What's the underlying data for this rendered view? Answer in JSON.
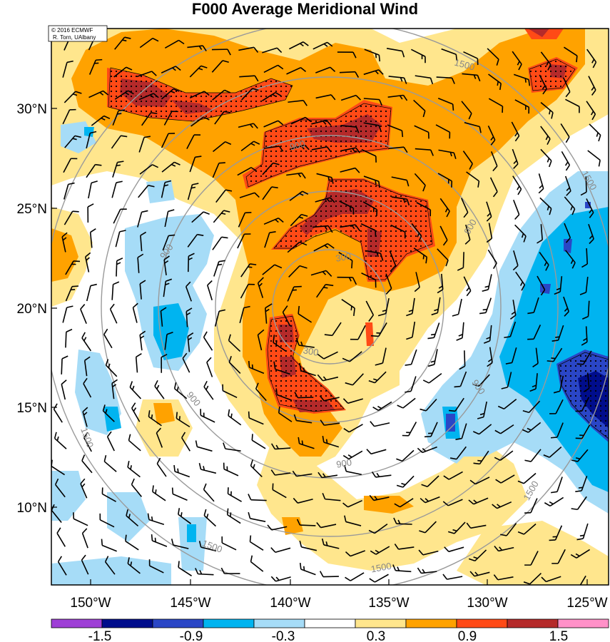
{
  "title": "F000 Average Meridional Wind",
  "credit": {
    "line1": "© 2016 ECMWF",
    "line2": "R. Torn, UAlbany"
  },
  "map": {
    "lat_labels": [
      "30°N",
      "25°N",
      "20°N",
      "15°N",
      "10°N"
    ],
    "lon_labels": [
      "150°W",
      "145°W",
      "140°W",
      "135°W",
      "130°W",
      "125°W"
    ],
    "contour_color": "#9a9a9a",
    "contour_labels": [
      "300",
      "300",
      "900",
      "900",
      "900",
      "900",
      "900",
      "900",
      "1500",
      "1500",
      "1500",
      "1500",
      "1500",
      "1500"
    ]
  },
  "colorbar": {
    "tick_labels": [
      "-1.5",
      "-0.9",
      "-0.3",
      "0.3",
      "0.9",
      "1.5"
    ],
    "colors": [
      "#9e3fd6",
      "#000d8c",
      "#2a46c6",
      "#00b4f0",
      "#a6dcf7",
      "#ffffff",
      "#ffe68d",
      "#ffa200",
      "#ff4a16",
      "#b52a2a",
      "#ff91c8"
    ]
  },
  "shading": {
    "light_orange": "#ffe68d",
    "orange": "#ffa200",
    "red_orange": "#ff4a16",
    "dark_red": "#b52a2a",
    "light_blue": "#a6dcf7",
    "blue": "#00b4f0",
    "med_blue": "#2a46c6",
    "navy": "#000d8c"
  }
}
